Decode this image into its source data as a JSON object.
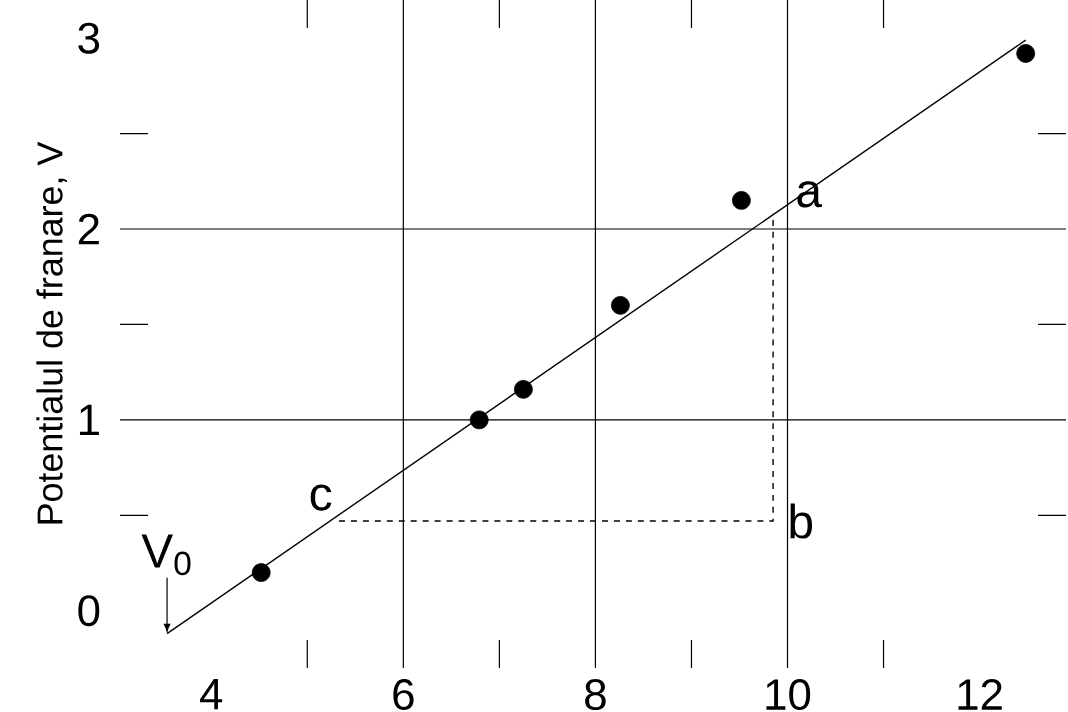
{
  "chart_data": {
    "type": "scatter",
    "ylabel": "Potentialul de franare, V",
    "xlim": [
      3.05,
      12.9
    ],
    "ylim": [
      -0.3,
      3.2
    ],
    "xticks": [
      4,
      {
        "value": 5,
        "label": null
      },
      6,
      {
        "value": 7,
        "label": null
      },
      8,
      {
        "value": 9,
        "label": null
      },
      10,
      {
        "value": 11,
        "label": null
      },
      12
    ],
    "yticks": [
      0,
      {
        "value": 0.5,
        "label": null
      },
      1,
      {
        "value": 1.5,
        "label": null
      },
      2,
      {
        "value": 2.5,
        "label": null
      },
      3
    ],
    "grid": true,
    "marker": "circle",
    "series": [
      {
        "color": "#000000",
        "x": [
          4.52,
          6.79,
          7.25,
          8.26,
          9.52,
          12.48
        ],
        "values": [
          0.2,
          1.0,
          1.16,
          1.6,
          2.15,
          2.92
        ]
      },
      {
        "type": "line",
        "color": "#000000",
        "marker": "none",
        "line_style": "solid",
        "x": [
          3.54,
          12.48
        ],
        "values": [
          -0.12,
          2.99
        ]
      },
      {
        "type": "line",
        "color": "#000000",
        "marker": "none",
        "line_style": "dashed",
        "x": [
          5.33,
          9.85,
          9.85
        ],
        "values": [
          0.47,
          0.47,
          2.08
        ]
      }
    ],
    "annotations": [
      {
        "text": "a",
        "x": 9.85,
        "y": 2.08
      },
      {
        "text": "b",
        "x": 9.85,
        "y": 0.47
      },
      {
        "text": "c",
        "x": 5.33,
        "y": 0.47
      },
      {
        "text": "V$_{0}$",
        "x": 3.54,
        "y": -0.12
      }
    ]
  }
}
